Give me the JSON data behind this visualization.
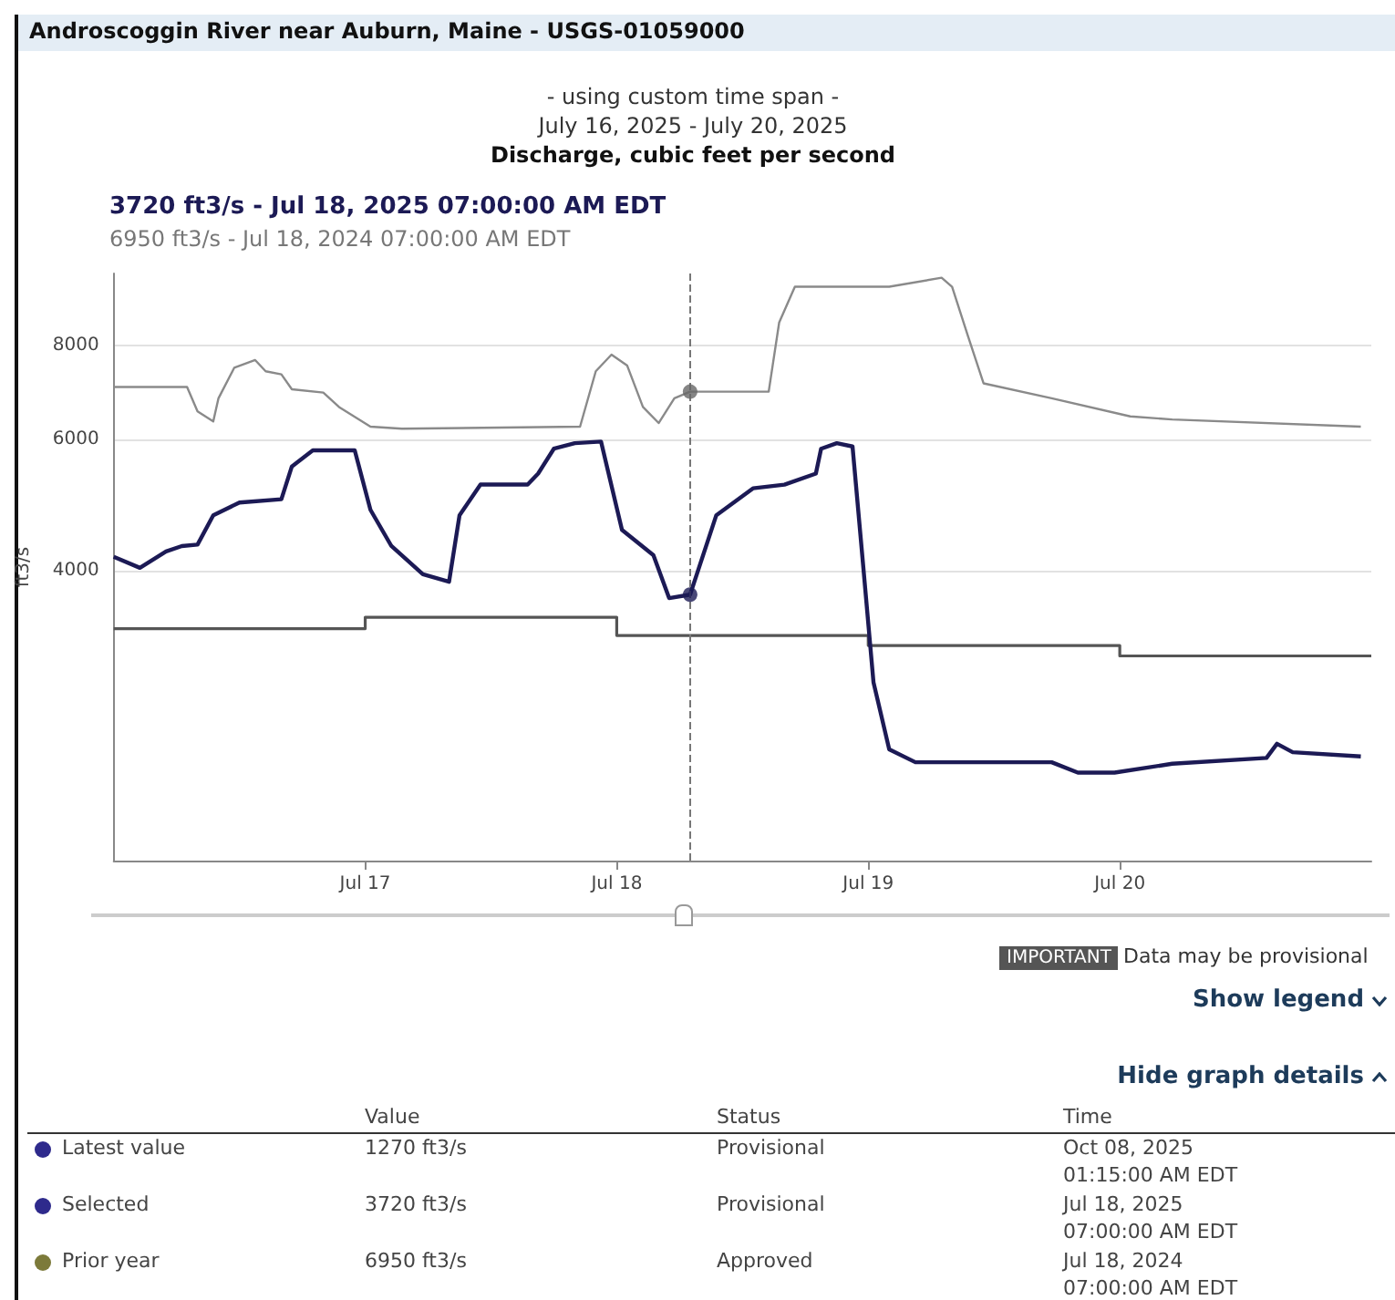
{
  "chart_data": {
    "type": "line",
    "title": "Androscoggin River near Auburn, Maine - USGS-01059000",
    "subtitle": "Discharge, cubic feet per second",
    "ylabel": "ft3/s",
    "annotations": [
      "- using custom time span -",
      "July 16, 2025 - July 20, 2025",
      "3720 ft3/s - Jul 18, 2025 07:00:00 AM EDT",
      "6950 ft3/s - Jul 18, 2024 07:00:00 AM EDT",
      "IMPORTANT",
      "Data may be provisional",
      "Show legend",
      "Hide graph details",
      "Value",
      "Status",
      "Time",
      "Latest value",
      "1270 ft3/s",
      "Provisional",
      "Oct 08, 2025\n01:15:00 AM EDT",
      "Selected",
      "3720 ft3/s",
      "Provisional",
      "Jul 18, 2025\n07:00:00 AM EDT",
      "Prior year",
      "6950 ft3/s",
      "Approved",
      "Jul 18, 2024\n07:00:00 AM EDT"
    ],
    "log": true,
    "grid": "y",
    "xlim": [
      "2025-07-16T00:00",
      "2025-07-21T00:00"
    ],
    "xticks": [
      {
        "value": "2025-07-17T00:00",
        "label": "Jul 17"
      },
      {
        "value": "2025-07-18T00:00",
        "label": "Jul 18"
      },
      {
        "value": "2025-07-19T00:00",
        "label": "Jul 19"
      },
      {
        "value": "2025-07-20T00:00",
        "label": "Jul 20"
      }
    ],
    "ylim": [
      1640,
      10000
    ],
    "yticks": [
      4000,
      6000,
      8000
    ],
    "ref_lines": [
      {
        "axis": "x",
        "value": "2025-07-18T07:00",
        "label": null,
        "color": "#777777",
        "line_style": "dashed"
      }
    ],
    "series": [
      {
        "type": "step",
        "color": "#555555",
        "x": [
          "2025-07-16T00:00",
          "2025-07-17T00:00",
          "2025-07-18T00:00",
          "2025-07-19T00:00",
          "2025-07-20T00:00",
          "2025-07-21T00:00"
        ],
        "values": [
          3350,
          3470,
          3280,
          3180,
          3080,
          3080
        ]
      },
      {
        "type": "line",
        "color": "#8a8a8a",
        "x": [
          "2025-07-16T00:00",
          "2025-07-16T07:00",
          "2025-07-16T08:00",
          "2025-07-16T09:30",
          "2025-07-16T10:00",
          "2025-07-16T11:30",
          "2025-07-16T13:30",
          "2025-07-16T14:30",
          "2025-07-16T16:00",
          "2025-07-16T17:00",
          "2025-07-16T20:00",
          "2025-07-16T21:30",
          "2025-07-17T00:30",
          "2025-07-17T03:30",
          "2025-07-17T20:30",
          "2025-07-17T22:00",
          "2025-07-17T23:30",
          "2025-07-18T01:00",
          "2025-07-18T02:30",
          "2025-07-18T04:00",
          "2025-07-18T05:30",
          "2025-07-18T07:00",
          "2025-07-18T14:30",
          "2025-07-18T15:30",
          "2025-07-18T17:00",
          "2025-07-19T02:00",
          "2025-07-19T07:00",
          "2025-07-19T08:00",
          "2025-07-19T09:30",
          "2025-07-19T11:00",
          "2025-07-19T17:30",
          "2025-07-20T01:00",
          "2025-07-20T05:00",
          "2025-07-20T23:00"
        ],
        "values": [
          7050,
          7050,
          6540,
          6340,
          6810,
          7480,
          7660,
          7400,
          7330,
          7000,
          6930,
          6630,
          6240,
          6200,
          6240,
          7400,
          7790,
          7530,
          6630,
          6310,
          6810,
          6950,
          6950,
          8600,
          9600,
          9600,
          9870,
          9600,
          8260,
          7130,
          6810,
          6440,
          6380,
          6240
        ]
      },
      {
        "color": "#1c1a55",
        "x": [
          "2025-07-16T00:00",
          "2025-07-16T02:30",
          "2025-07-16T05:00",
          "2025-07-16T06:30",
          "2025-07-16T08:00",
          "2025-07-16T09:30",
          "2025-07-16T12:00",
          "2025-07-16T16:00",
          "2025-07-16T17:00",
          "2025-07-16T19:00",
          "2025-07-16T23:00",
          "2025-07-17T00:30",
          "2025-07-17T02:30",
          "2025-07-17T05:30",
          "2025-07-17T08:00",
          "2025-07-17T09:00",
          "2025-07-17T11:00",
          "2025-07-17T15:30",
          "2025-07-17T16:30",
          "2025-07-17T18:00",
          "2025-07-17T20:00",
          "2025-07-17T22:30",
          "2025-07-18T00:30",
          "2025-07-18T03:30",
          "2025-07-18T05:00",
          "2025-07-18T07:00",
          "2025-07-18T09:30",
          "2025-07-18T13:00",
          "2025-07-18T16:00",
          "2025-07-18T19:00",
          "2025-07-18T19:30",
          "2025-07-18T21:00",
          "2025-07-18T22:30",
          "2025-07-18T23:30",
          "2025-07-19T00:30",
          "2025-07-19T02:00",
          "2025-07-19T04:30",
          "2025-07-19T17:30",
          "2025-07-19T20:00",
          "2025-07-19T23:30",
          "2025-07-20T05:00",
          "2025-07-20T14:00",
          "2025-07-20T15:00",
          "2025-07-20T16:30",
          "2025-07-20T23:00"
        ],
        "values": [
          4180,
          4040,
          4250,
          4320,
          4340,
          4750,
          4940,
          4990,
          5520,
          5800,
          5800,
          4830,
          4320,
          3960,
          3870,
          4750,
          5220,
          5220,
          5400,
          5830,
          5930,
          5960,
          4540,
          4200,
          3680,
          3720,
          4750,
          5160,
          5220,
          5400,
          5830,
          5930,
          5870,
          4090,
          2840,
          2310,
          2220,
          2220,
          2150,
          2150,
          2210,
          2250,
          2350,
          2290,
          2260
        ]
      },
      {
        "type": "scatter",
        "color": "#666666",
        "marker": "circle",
        "x": [
          "2025-07-18T07:00"
        ],
        "values": [
          6950
        ]
      },
      {
        "type": "scatter",
        "color": "#1c1a55",
        "marker": "circle",
        "x": [
          "2025-07-18T07:00"
        ],
        "values": [
          3720
        ]
      }
    ]
  }
}
